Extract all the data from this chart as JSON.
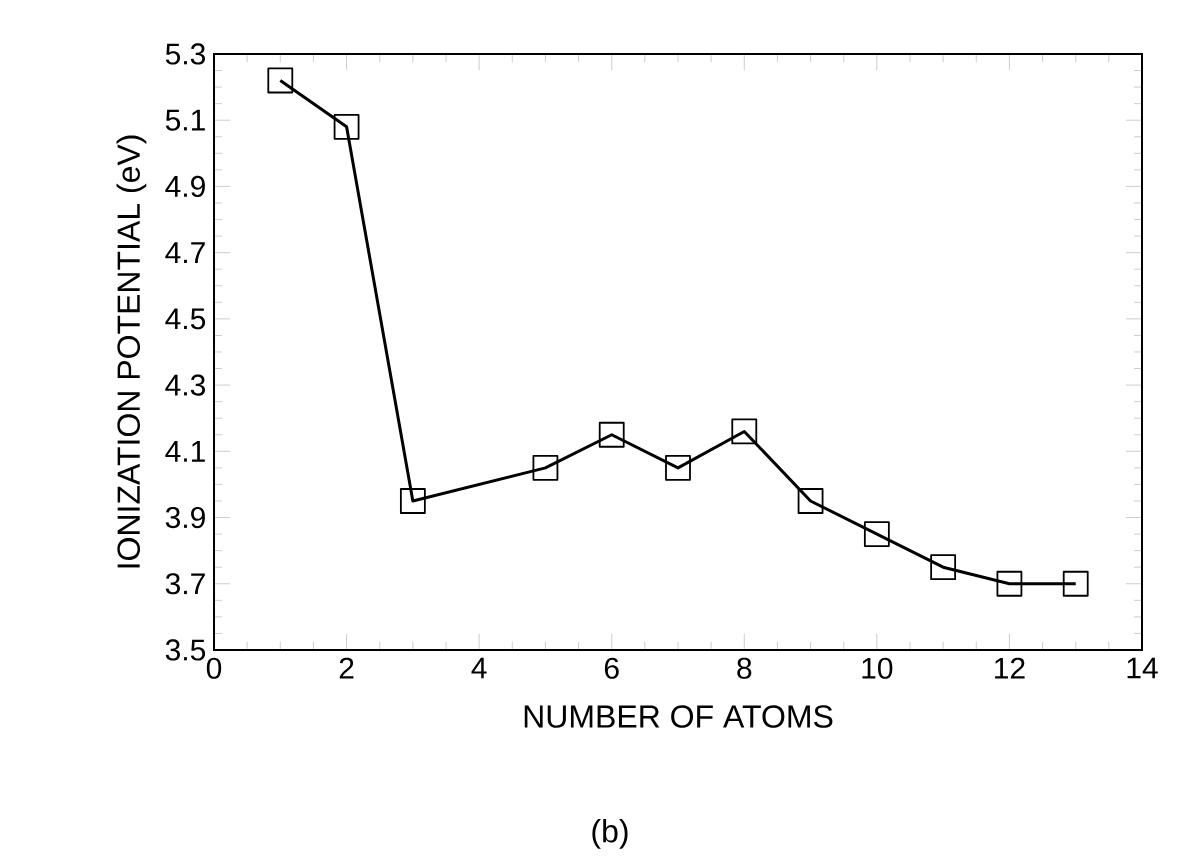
{
  "chart_data": {
    "type": "line",
    "xlabel": "NUMBER OF ATOMS",
    "ylabel": "IONIZATION POTENTIAL (eV)",
    "annotations": [
      "(b)"
    ],
    "x": [
      1,
      2,
      3,
      5,
      6,
      7,
      8,
      9,
      10,
      11,
      12,
      13
    ],
    "values": [
      5.22,
      5.08,
      3.95,
      4.05,
      4.15,
      4.05,
      4.16,
      3.95,
      3.85,
      3.75,
      3.7,
      3.7
    ],
    "color": "#000000",
    "marker": "square",
    "line_style": "solid",
    "grid": false,
    "xlim": [
      0,
      14
    ],
    "ylim": [
      3.5,
      5.3
    ],
    "xticks": [
      0,
      2,
      4,
      6,
      8,
      10,
      12,
      14
    ],
    "yticks": [
      3.5,
      3.7,
      3.9,
      4.1,
      4.3,
      4.5,
      4.7,
      4.9,
      5.1,
      5.3
    ]
  }
}
